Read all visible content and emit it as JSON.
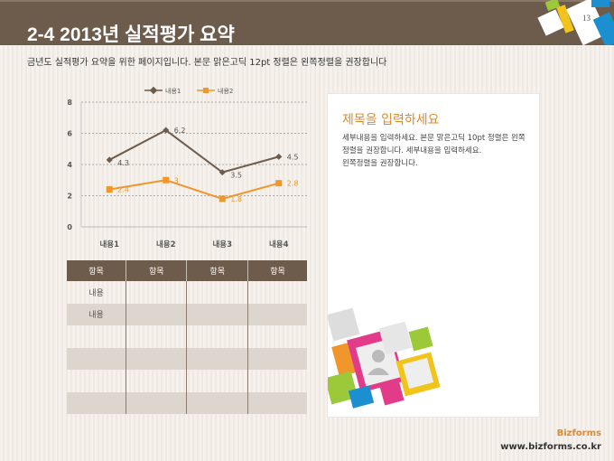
{
  "header": {
    "title": "2-4 2013년 실적평가 요약",
    "page_number": "13"
  },
  "subtitle": "금년도 실적평가 요약을 위한 페이지입니다. 본문 맑은고딕 12pt 정렬은 왼쪽정렬을 권장합니다",
  "chart_data": {
    "type": "line",
    "categories": [
      "내용1",
      "내용2",
      "내용3",
      "내용4"
    ],
    "series": [
      {
        "name": "내용1",
        "values": [
          4.3,
          6.2,
          3.5,
          4.5
        ],
        "color": "#6d5b4b",
        "marker": "diamond"
      },
      {
        "name": "내용2",
        "values": [
          2.4,
          3,
          1.8,
          2.8
        ],
        "color": "#f0962a",
        "marker": "square"
      }
    ],
    "ylim": [
      0,
      8
    ],
    "yticks": [
      0,
      2,
      4,
      6,
      8
    ],
    "grid": true,
    "legend": "top",
    "data_labels": true
  },
  "table": {
    "headers": [
      "항목",
      "항목",
      "항목",
      "항목"
    ],
    "rows": [
      [
        "내용",
        "",
        "",
        ""
      ],
      [
        "내용",
        "",
        "",
        ""
      ],
      [
        "",
        "",
        "",
        ""
      ],
      [
        "",
        "",
        "",
        ""
      ],
      [
        "",
        "",
        "",
        ""
      ],
      [
        "",
        "",
        "",
        ""
      ]
    ]
  },
  "panel": {
    "title": "제목을 입력하세요",
    "body": "세부내용을 입력하세요. 본문 맑은고딕 10pt 정렬은 왼쪽정렬을 권장합니다. 세부내용을 입력하세요.\n왼쪽정렬을 권장합니다."
  },
  "footer": {
    "brand": "Bizforms",
    "url": "www.bizforms.co.kr"
  }
}
